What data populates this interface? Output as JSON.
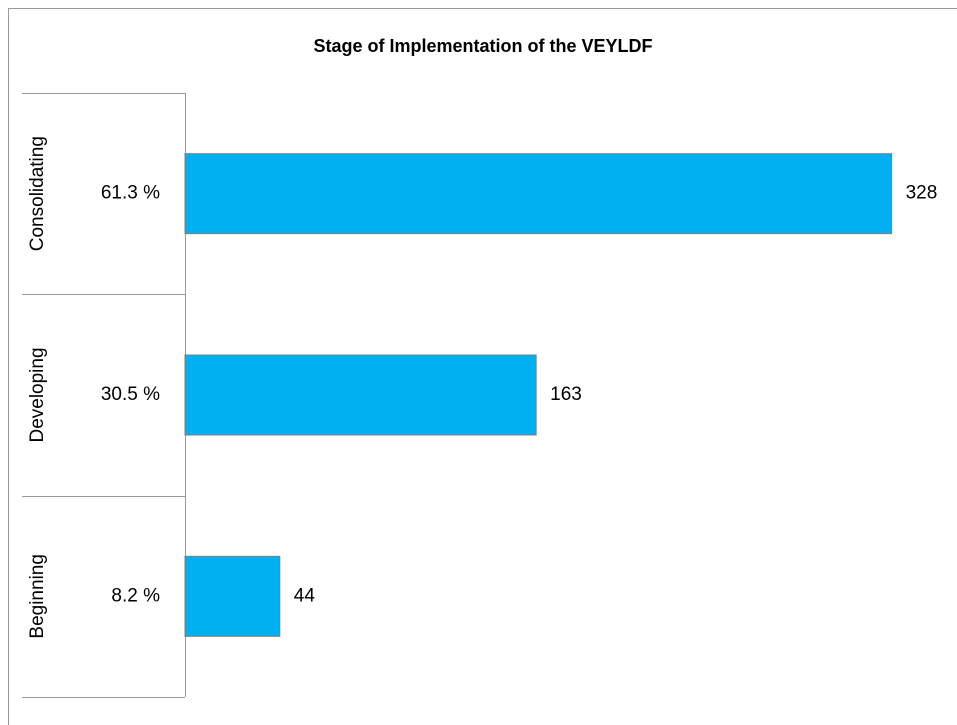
{
  "chart_data": {
    "type": "bar",
    "orientation": "horizontal",
    "title": "Stage of Implementation of the VEYLDF",
    "categories": [
      "Consolidating",
      "Developing",
      "Beginning"
    ],
    "values": [
      328,
      163,
      44
    ],
    "shares": [
      {
        "value": 61.3,
        "label": "61.3 %"
      },
      {
        "value": 30.5,
        "label": "30.5 %"
      },
      {
        "value": 8.2,
        "label": "8.2 %"
      }
    ],
    "color": "#00b0f0",
    "xlim": [
      0,
      350
    ]
  }
}
